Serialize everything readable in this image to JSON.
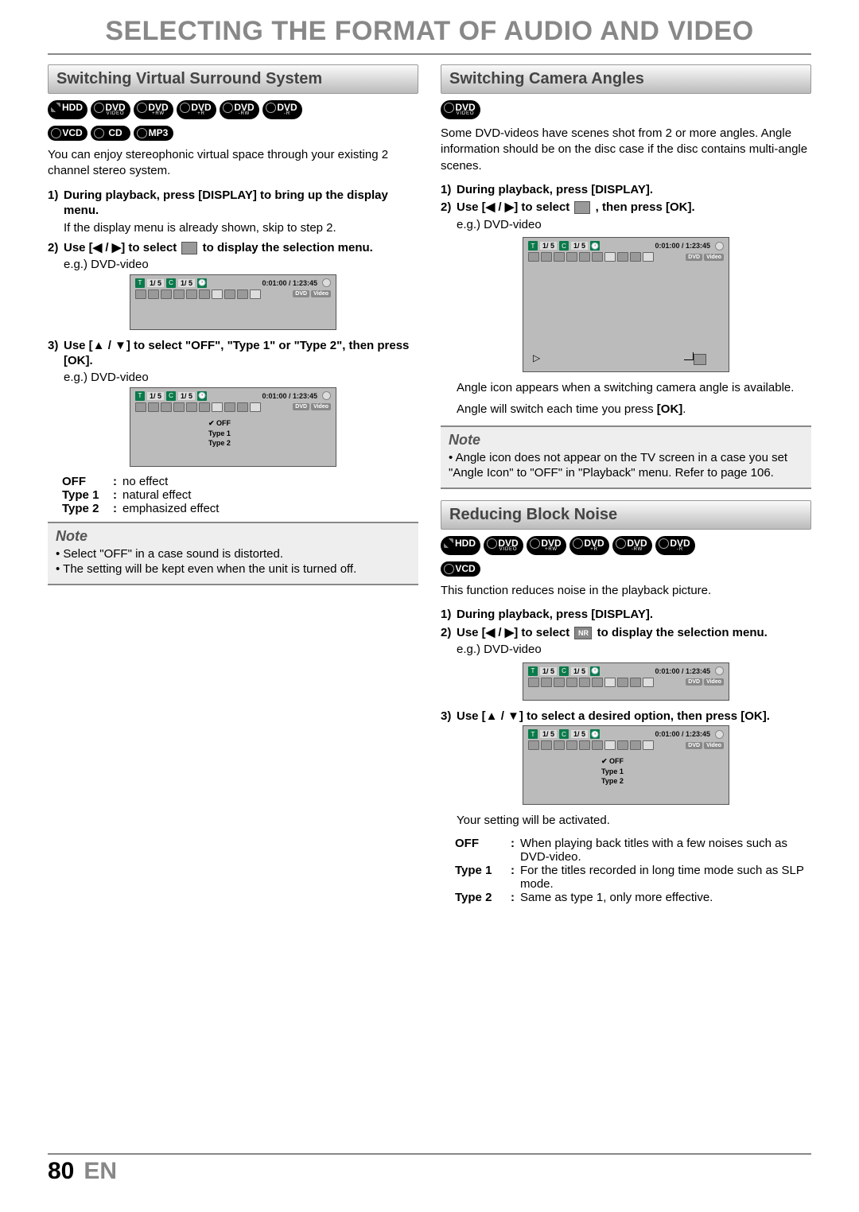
{
  "page_title": "SELECTING THE FORMAT OF AUDIO AND VIDEO",
  "page_number": "80",
  "page_lang": "EN",
  "left": {
    "header": "Switching Virtual Surround System",
    "badges_row1": [
      {
        "main": "HDD",
        "cls": "hdd one-line"
      },
      {
        "main": "DVD",
        "sub": "VIDEO"
      },
      {
        "main": "DVD",
        "sub": "+RW"
      },
      {
        "main": "DVD",
        "sub": "+R"
      },
      {
        "main": "DVD",
        "sub": "-RW"
      },
      {
        "main": "DVD",
        "sub": "-R"
      }
    ],
    "badges_row2": [
      {
        "main": "VCD",
        "cls": "one-line"
      },
      {
        "main": "CD",
        "cls": "one-line"
      },
      {
        "main": "MP3",
        "cls": "one-line"
      }
    ],
    "intro": "You can enjoy stereophonic virtual space through your existing 2 channel stereo system.",
    "step1_num": "1)",
    "step1": "During playback, press [DISPLAY] to bring up the display menu.",
    "step1_sub": "If the display menu is already shown, skip to step 2.",
    "step2_num": "2)",
    "step2_a": "Use [",
    "step2_arrows": "◀ / ▶",
    "step2_b": "] to select ",
    "step2_c": " to display the selection menu.",
    "eg": "e.g.) DVD-video",
    "step3_num": "3)",
    "step3": "Use [▲ / ▼] to select \"OFF\", \"Type 1\" or \"Type 2\", then press [OK].",
    "osd": {
      "t": "T",
      "c": "C",
      "clock": "🕐",
      "nums": "1/  5",
      "time": "0:01:00 / 1:23:45",
      "dvd": "DVD",
      "video": "Video",
      "menu": [
        "OFF",
        "Type 1",
        "Type 2"
      ]
    },
    "opts": [
      {
        "k": "OFF",
        "v": "no effect"
      },
      {
        "k": "Type 1",
        "v": "natural effect"
      },
      {
        "k": "Type 2",
        "v": "emphasized effect"
      }
    ],
    "note_title": "Note",
    "notes": [
      "Select \"OFF\" in a case sound is distorted.",
      "The setting will be kept even when the unit is turned off."
    ]
  },
  "right": {
    "header1": "Switching Camera Angles",
    "badge1": {
      "main": "DVD",
      "sub": "VIDEO"
    },
    "intro1": "Some DVD-videos have scenes shot from 2 or more angles. Angle information should be on the disc case if the disc contains multi-angle scenes.",
    "s1_num": "1)",
    "s1": "During playback, press [DISPLAY].",
    "s2_num": "2)",
    "s2_a": "Use [",
    "s2_ar": "◀ / ▶",
    "s2_b": "] to select ",
    "s2_c": " , then press [OK].",
    "eg": "e.g.) DVD-video",
    "after1": "Angle icon appears when a switching camera angle is available.",
    "after2_a": "Angle will switch each time you press ",
    "after2_b": "[OK]",
    "note_title": "Note",
    "note1": "Angle icon does not appear on the TV screen in a case you set \"Angle Icon\" to \"OFF\" in \"Playback\" menu. Refer to page 106.",
    "header2": "Reducing Block Noise",
    "badges2_row1": [
      {
        "main": "HDD",
        "cls": "hdd one-line"
      },
      {
        "main": "DVD",
        "sub": "VIDEO"
      },
      {
        "main": "DVD",
        "sub": "+RW"
      },
      {
        "main": "DVD",
        "sub": "+R"
      },
      {
        "main": "DVD",
        "sub": "-RW"
      },
      {
        "main": "DVD",
        "sub": "-R"
      }
    ],
    "badges2_row2": [
      {
        "main": "VCD",
        "cls": "one-line"
      }
    ],
    "intro2": "This function reduces noise in the playback picture.",
    "b1_num": "1)",
    "b1": "During playback, press [DISPLAY].",
    "b2_num": "2)",
    "b2_a": "Use [",
    "b2_ar": "◀ / ▶",
    "b2_b": "] to select ",
    "b2_c": " to display the selection menu.",
    "b3_num": "3)",
    "b3": "Use [▲ / ▼] to select a desired option, then press [OK].",
    "nr": "NR",
    "after3": "Your setting will be activated.",
    "opts2": [
      {
        "k": "OFF",
        "v": "When playing back titles with a few noises such as DVD-video."
      },
      {
        "k": "Type 1",
        "v": "For the titles recorded in long time mode such as SLP mode."
      },
      {
        "k": "Type 2",
        "v": "Same as type 1, only more effective."
      }
    ]
  }
}
